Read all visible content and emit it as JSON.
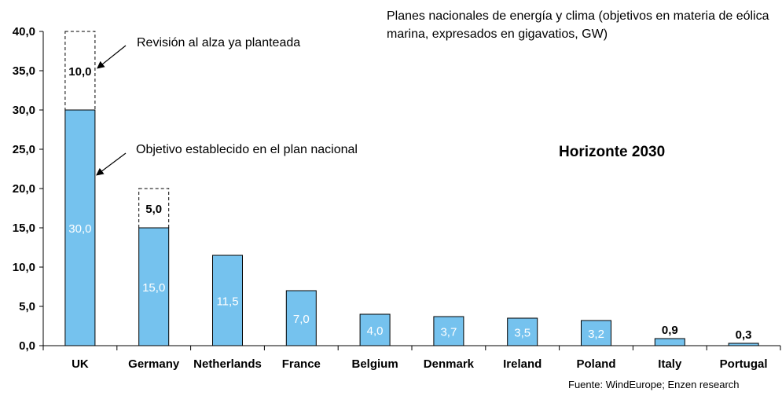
{
  "chart_data": {
    "type": "bar",
    "title": "Planes nacionales de energía y clima (objetivos en materia de eólica marina, expresados en gigavatios, GW)",
    "subtitle": "Horizonte 2030",
    "categories": [
      "UK",
      "Germany",
      "Netherlands",
      "France",
      "Belgium",
      "Denmark",
      "Ireland",
      "Poland",
      "Italy",
      "Portugal"
    ],
    "series": [
      {
        "name": "Objetivo establecido en el plan nacional",
        "values": [
          30.0,
          15.0,
          11.5,
          7.0,
          4.0,
          3.7,
          3.5,
          3.2,
          0.9,
          0.3
        ],
        "labels": [
          "30,0",
          "15,0",
          "11,5",
          "7,0",
          "4,0",
          "3,7",
          "3,5",
          "3,2",
          "0,9",
          "0,3"
        ],
        "color": "#75C2EE"
      },
      {
        "name": "Revisión al alza ya planteada",
        "values": [
          10.0,
          5.0,
          null,
          null,
          null,
          null,
          null,
          null,
          null,
          null
        ],
        "labels": [
          "10,0",
          "5,0",
          "",
          "",
          "",
          "",
          "",
          "",
          "",
          ""
        ],
        "style": "dashed-outline"
      }
    ],
    "yticks": [
      "0,0",
      "5,0",
      "10,0",
      "15,0",
      "20,0",
      "25,0",
      "30,0",
      "35,0",
      "40,0"
    ],
    "ylim": [
      0,
      40
    ],
    "grid": false,
    "legend": "annotations"
  },
  "annotations": {
    "revision": "Revisión al alza ya planteada",
    "objective": "Objetivo establecido en el plan nacional"
  },
  "source": "Fuente: WindEurope; Enzen research"
}
